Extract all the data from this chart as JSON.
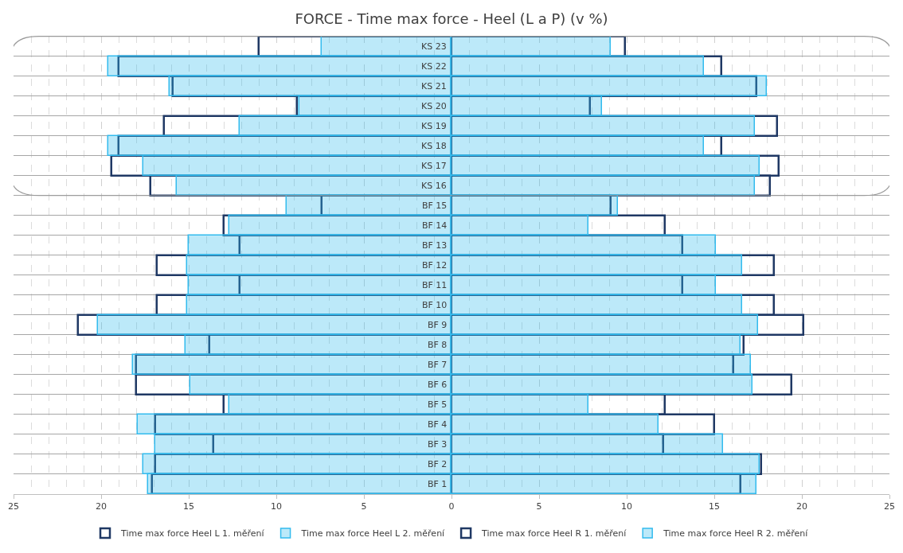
{
  "chart_data": {
    "type": "bar",
    "orientation": "horizontal",
    "title": "FORCE - Time max force - Heel (L a P) (v %)",
    "categories": [
      "KS 23",
      "KS 22",
      "KS 21",
      "KS 20",
      "KS 19",
      "KS 18",
      "KS 17",
      "KS 16",
      "BF 15",
      "BF 14",
      "BF 13",
      "BF 12",
      "BF 11",
      "BF 10",
      "BF 9",
      "BF 8",
      "BF 7",
      "BF 6",
      "BF 5",
      "BF 4",
      "BF 3",
      "BF 2",
      "BF 1"
    ],
    "series": [
      {
        "name": "Time max force Heel L 1. měření",
        "color": "#1f3864",
        "values": [
          -11.0,
          -19.0,
          -15.9,
          -8.8,
          -16.4,
          -19.0,
          -19.4,
          -17.2,
          -7.4,
          -13.0,
          -12.1,
          -16.8,
          -12.1,
          -16.8,
          -21.3,
          -13.8,
          -18.0,
          -18.0,
          -13.0,
          -16.9,
          -13.6,
          -16.9,
          -17.1
        ]
      },
      {
        "name": "Time max force Heel L 2. měření",
        "color": "#33bbee",
        "values": [
          -7.4,
          -19.6,
          -16.1,
          -8.7,
          -12.1,
          -19.6,
          -17.6,
          -15.7,
          -9.4,
          -12.7,
          -15.0,
          -15.1,
          -15.0,
          -15.1,
          -20.2,
          -15.2,
          -18.2,
          -14.9,
          -12.7,
          -17.9,
          -16.9,
          -17.6,
          -17.3
        ]
      },
      {
        "name": "Time max force Heel R 1. měření",
        "color": "#1f3864",
        "values": [
          9.9,
          15.4,
          17.4,
          7.9,
          18.6,
          15.4,
          18.7,
          18.2,
          9.1,
          12.2,
          13.2,
          18.4,
          13.2,
          18.4,
          20.1,
          16.7,
          16.1,
          19.4,
          12.2,
          15.0,
          12.1,
          17.7,
          16.5
        ]
      },
      {
        "name": "Time max force Heel R 2. měření",
        "color": "#33bbee",
        "values": [
          9.1,
          14.4,
          18.0,
          8.6,
          17.3,
          14.4,
          17.6,
          17.3,
          9.5,
          7.8,
          15.1,
          16.6,
          15.1,
          16.6,
          17.5,
          16.5,
          17.1,
          17.2,
          7.8,
          11.8,
          15.5,
          17.6,
          17.4
        ]
      }
    ],
    "xlim": [
      -25,
      25
    ],
    "xticks": [
      {
        "value": -25,
        "label": "25"
      },
      {
        "value": -20,
        "label": "20"
      },
      {
        "value": -15,
        "label": "15"
      },
      {
        "value": -10,
        "label": "10"
      },
      {
        "value": -5,
        "label": "5"
      },
      0,
      5,
      10,
      15,
      20,
      25
    ],
    "grid": true,
    "legend": "bottom"
  }
}
